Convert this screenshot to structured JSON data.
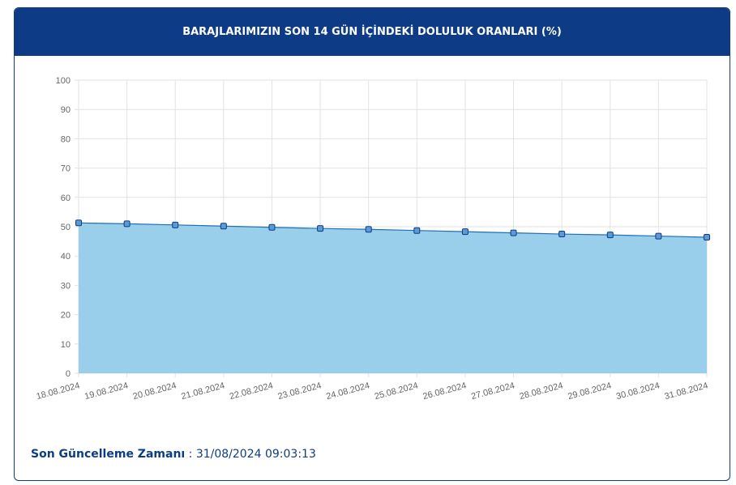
{
  "chart_data": {
    "type": "area",
    "title": "BARAJLARIMIZIN SON 14 GÜN İÇİNDEKİ DOLULUK ORANLARI (%)",
    "categories": [
      "18.08.2024",
      "19.08.2024",
      "20.08.2024",
      "21.08.2024",
      "22.08.2024",
      "23.08.2024",
      "24.08.2024",
      "25.08.2024",
      "26.08.2024",
      "27.08.2024",
      "28.08.2024",
      "29.08.2024",
      "30.08.2024",
      "31.08.2024"
    ],
    "values": [
      51.3,
      51.0,
      50.6,
      50.2,
      49.8,
      49.4,
      49.1,
      48.7,
      48.3,
      47.9,
      47.5,
      47.2,
      46.8,
      46.4
    ],
    "color": "#1f6fb5",
    "fill": "#9acfec",
    "ylim": [
      0,
      100
    ],
    "yticks": [
      0,
      10,
      20,
      30,
      40,
      50,
      60,
      70,
      80,
      90,
      100
    ],
    "grid": true
  },
  "footer": {
    "label": "Son Güncelleme Zamanı",
    "value": ": 31/08/2024 09:03:13"
  }
}
